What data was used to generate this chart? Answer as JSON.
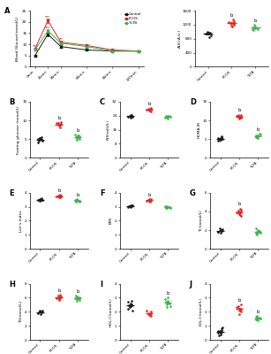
{
  "line_times": [
    0,
    15,
    30,
    60,
    90,
    120
  ],
  "line_control": [
    5.0,
    14.5,
    9.0,
    7.5,
    7.0,
    7.0
  ],
  "line_pcos": [
    8.0,
    20.5,
    11.0,
    9.5,
    7.5,
    7.0
  ],
  "line_yltb": [
    7.5,
    16.0,
    10.5,
    9.0,
    7.0,
    7.0
  ],
  "line_control_err": [
    0.4,
    0.8,
    0.5,
    0.4,
    0.3,
    0.3
  ],
  "line_pcos_err": [
    0.5,
    0.9,
    0.6,
    0.5,
    0.3,
    0.3
  ],
  "line_yltb_err": [
    0.4,
    0.8,
    0.5,
    0.4,
    0.3,
    0.3
  ],
  "auc_control": [
    950,
    970,
    1000,
    850,
    900,
    980,
    960
  ],
  "auc_pcos": [
    1150,
    1250,
    1300,
    1200,
    1280,
    1350,
    1180
  ],
  "auc_yltb": [
    1050,
    1100,
    1150,
    1200,
    1080,
    1130,
    1070
  ],
  "fg_control": [
    5.0,
    4.8,
    5.2,
    5.5,
    4.5,
    5.1,
    5.3,
    4.2,
    4.6
  ],
  "fg_pcos": [
    8.5,
    9.0,
    9.5,
    8.0,
    9.2,
    8.8,
    9.3
  ],
  "fg_yltb": [
    5.5,
    6.0,
    5.2,
    4.8,
    5.8,
    5.5,
    6.2,
    5.0,
    5.9
  ],
  "ins_control": [
    23.5,
    24.0,
    23.8,
    24.2,
    23.2,
    24.5,
    23.0
  ],
  "ins_pcos": [
    27.0,
    28.0,
    26.5,
    28.5,
    27.5,
    28.0,
    27.8
  ],
  "ins_yltb": [
    23.5,
    24.0,
    22.5,
    23.5,
    24.0,
    23.8,
    22.8,
    23.2
  ],
  "homa_control": [
    5.2,
    5.5,
    4.8,
    5.8,
    5.0,
    4.9,
    5.3,
    4.5,
    5.1
  ],
  "homa_pcos": [
    10.5,
    11.0,
    10.8,
    11.5,
    11.2,
    10.9,
    11.3,
    10.6
  ],
  "homa_yltb": [
    5.5,
    6.0,
    5.2,
    5.8,
    6.5,
    5.9,
    5.6,
    6.2
  ],
  "lee_control": [
    3.5,
    3.6,
    3.55,
    3.45,
    3.48,
    3.52,
    3.42
  ],
  "lee_pcos": [
    3.7,
    3.8,
    3.75,
    3.85,
    3.72,
    3.68,
    3.78,
    3.65
  ],
  "lee_yltb": [
    3.4,
    3.45,
    3.5,
    3.55,
    3.42,
    3.38,
    3.48,
    3.35
  ],
  "bmi_control": [
    3.0,
    3.1,
    3.05,
    3.02,
    3.08,
    3.12,
    3.0
  ],
  "bmi_pcos": [
    3.4,
    3.5,
    3.45,
    3.55,
    3.42,
    3.38,
    3.48,
    3.52
  ],
  "bmi_yltb": [
    2.9,
    3.0,
    2.95,
    3.05,
    2.98,
    2.92,
    3.02,
    2.88
  ],
  "tc_control": [
    1.8,
    2.0,
    2.2,
    1.9,
    2.1,
    1.7,
    2.0,
    1.85
  ],
  "tc_pcos": [
    3.8,
    4.0,
    3.5,
    4.2,
    3.9,
    3.6,
    4.1,
    3.7,
    4.3
  ],
  "tc_yltb": [
    1.5,
    1.8,
    2.0,
    1.7,
    1.9,
    2.2,
    1.6,
    1.75
  ],
  "tg_control": [
    3.8,
    4.0,
    4.2,
    3.9,
    4.1,
    3.7,
    4.0
  ],
  "tg_pcos": [
    5.8,
    6.2,
    6.0,
    6.4,
    5.9,
    6.1,
    6.3,
    5.7
  ],
  "tg_yltb": [
    5.5,
    6.0,
    5.8,
    6.2,
    5.7,
    6.3,
    5.9,
    6.1
  ],
  "hdl_control": [
    2.2,
    2.5,
    2.3,
    2.8,
    2.1,
    2.6,
    2.4,
    2.7
  ],
  "hdl_pcos": [
    1.8,
    1.9,
    2.0,
    1.7,
    2.1,
    1.8,
    1.9,
    1.75
  ],
  "hdl_yltb": [
    2.3,
    2.8,
    3.0,
    2.5,
    2.6,
    2.7,
    2.9,
    2.4
  ],
  "ldl_control": [
    0.5,
    0.7,
    0.6,
    0.8,
    0.9,
    0.5,
    0.4,
    0.6,
    0.3
  ],
  "ldl_pcos": [
    1.8,
    2.2,
    2.5,
    2.0,
    2.3,
    2.1,
    2.4,
    2.2
  ],
  "ldl_yltb": [
    1.5,
    1.6,
    1.4,
    1.7,
    1.55,
    1.65,
    1.45,
    1.5
  ],
  "color_control": "#1a1a1a",
  "color_pcos": "#e32322",
  "color_yltb": "#3cb44b",
  "xlabel_cats": [
    "Control",
    "PCOS",
    "YLTB"
  ]
}
